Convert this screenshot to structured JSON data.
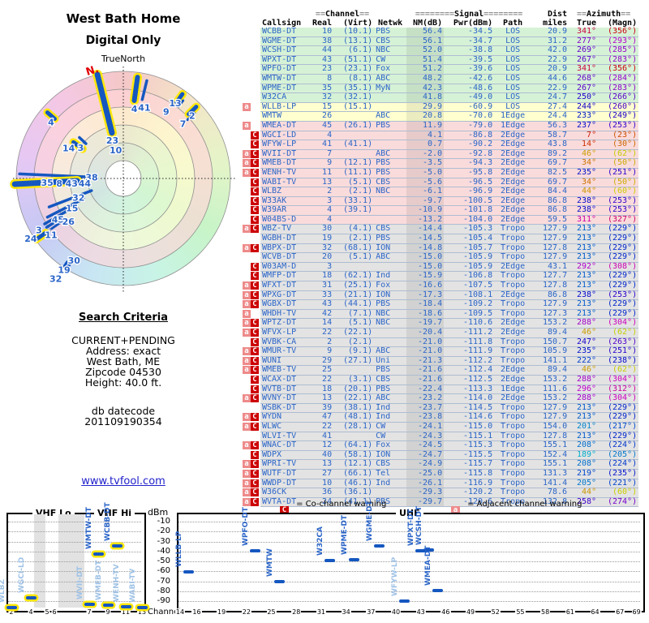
{
  "titles": {
    "main": "West Bath Home",
    "sub": "Digital Only"
  },
  "radar": {
    "axis_label": "TrueNorth",
    "magnetic_north": "N.",
    "bars": [
      {
        "az": 8,
        "r0": 126,
        "r1": 97,
        "w": 6,
        "y": 1
      },
      {
        "az": 13.5,
        "r0": 124,
        "r1": 100,
        "w": 3.5,
        "y": 0
      },
      {
        "az": 35,
        "r0": 127,
        "r1": 114,
        "w": 5,
        "y": 1
      },
      {
        "az": 37.5,
        "r0": 121,
        "r1": 112,
        "w": 3,
        "y": 0
      },
      {
        "az": 45.5,
        "r0": 126,
        "r1": 113,
        "w": 5,
        "y": 1
      },
      {
        "az": 47.5,
        "r0": 119,
        "r1": 107,
        "w": 3,
        "y": 0
      },
      {
        "az": 346,
        "r0": 132,
        "r1": 58,
        "w": 7,
        "y": 1
      },
      {
        "az": 311,
        "r0": 124,
        "r1": 112,
        "w": 5,
        "y": 1
      },
      {
        "az": 306,
        "r0": 76,
        "r1": 62,
        "w": 5,
        "y": 1
      },
      {
        "az": 313,
        "r0": 74,
        "r1": 63,
        "w": 3.5,
        "y": 0
      },
      {
        "az": 272.5,
        "r0": 128,
        "r1": 44,
        "w": 3.5,
        "y": 0
      },
      {
        "az": 267,
        "r0": 134,
        "r1": 57,
        "w": 7,
        "y": 1
      },
      {
        "az": 249,
        "r0": 98,
        "r1": 42,
        "w": 3.5,
        "y": 0
      },
      {
        "az": 243,
        "r0": 105,
        "r1": 55,
        "w": 3.5,
        "y": 0
      },
      {
        "az": 240,
        "r0": 112,
        "r1": 77,
        "w": 3.5,
        "y": 0
      },
      {
        "az": 235,
        "r0": 108,
        "r1": 88,
        "w": 3,
        "y": 0
      },
      {
        "az": 235,
        "r0": 131,
        "r1": 117,
        "w": 5,
        "y": 1
      },
      {
        "az": 237.5,
        "r0": 112,
        "r1": 98,
        "w": 3.5,
        "y": 0
      },
      {
        "az": 212,
        "r0": 131,
        "r1": 122,
        "w": 3.5,
        "y": 0
      },
      {
        "az": 214,
        "r0": 130,
        "r1": 124,
        "w": 3,
        "y": 0
      }
    ],
    "labels": [
      {
        "t": "4",
        "az": 9,
        "r": 87
      },
      {
        "t": "41",
        "az": 16.5,
        "r": 91
      },
      {
        "t": "13",
        "az": 34.5,
        "r": 113
      },
      {
        "t": "9",
        "az": 32.6,
        "r": 98
      },
      {
        "t": "2",
        "az": 47.5,
        "r": 115
      },
      {
        "t": "7",
        "az": 47.4,
        "r": 100
      },
      {
        "t": "23",
        "az": 344,
        "r": 49
      },
      {
        "t": "10",
        "az": 345,
        "r": 36
      },
      {
        "t": "4",
        "az": 308,
        "r": 113
      },
      {
        "t": "14",
        "az": 299,
        "r": 77
      },
      {
        "t": "3",
        "az": 306,
        "r": 65
      },
      {
        "t": "38",
        "az": 272.5,
        "r": 39
      },
      {
        "t": "35",
        "az": 267,
        "r": 94
      },
      {
        "t": "8",
        "az": 265.7,
        "r": 79
      },
      {
        "t": "43",
        "az": 264.6,
        "r": 64
      },
      {
        "t": "44",
        "az": 263,
        "r": 48
      },
      {
        "t": "32",
        "az": 247,
        "r": 60
      },
      {
        "t": "15",
        "az": 240,
        "r": 73
      },
      {
        "t": "45",
        "az": 238,
        "r": 95
      },
      {
        "t": "26",
        "az": 232,
        "r": 86
      },
      {
        "t": "24",
        "az": 237,
        "r": 136
      },
      {
        "t": "3",
        "az": 238.5,
        "r": 122
      },
      {
        "t": "11",
        "az": 232,
        "r": 113
      },
      {
        "t": "30",
        "az": 211,
        "r": 118
      },
      {
        "t": "19",
        "az": 213,
        "r": 134
      },
      {
        "t": "32",
        "az": 214,
        "r": 149
      }
    ]
  },
  "criteria": {
    "title": "Search Criteria",
    "lines": [
      "CURRENT+PENDING",
      "Address: exact",
      "West Bath, ME",
      "Zipcode 04530",
      "Height: 40.0 ft."
    ],
    "db_lines": [
      "db datecode",
      "201109190354"
    ],
    "link": "www.tvfool.com"
  },
  "table": {
    "header": {
      "channel": {
        "left": "==",
        "label": "Channel",
        "right": "=="
      },
      "signal": {
        "left": "========",
        "label": "Signal",
        "right": "========"
      },
      "dist": "Dist",
      "azimuth": {
        "left": "==",
        "label": "Azimuth",
        "right": "=="
      },
      "cols": [
        "Callsign",
        "Real",
        "(Virt)",
        "Netwk",
        "NM(dB)",
        "Pwr(dBm)",
        "Path",
        "miles",
        "True",
        "(Magn)"
      ]
    },
    "rows": [
      [
        "WCBB-DT",
        "10",
        "(10.1)",
        "PBS",
        "56.4",
        "-34.5",
        "LOS",
        "20.9",
        341,
        356,
        "",
        "g"
      ],
      [
        "WGME-DT",
        "38",
        "(13.1)",
        "CBS",
        "56.1",
        "-34.7",
        "LOS",
        "31.2",
        277,
        293,
        "",
        "g"
      ],
      [
        "WCSH-DT",
        "44",
        "(6.1)",
        "NBC",
        "52.0",
        "-38.8",
        "LOS",
        "42.0",
        269,
        285,
        "",
        "g"
      ],
      [
        "WPXT-DT",
        "43",
        "(51.1)",
        "CW",
        "51.4",
        "-39.5",
        "LOS",
        "22.9",
        267,
        283,
        "",
        "g"
      ],
      [
        "WPFO-DT",
        "23",
        "(23.1)",
        "Fox",
        "51.2",
        "-39.6",
        "LOS",
        "20.9",
        341,
        356,
        "",
        "g"
      ],
      [
        "WMTW-DT",
        "8",
        "(8.1)",
        "ABC",
        "48.2",
        "-42.6",
        "LOS",
        "44.6",
        268,
        284,
        "",
        "g"
      ],
      [
        "WPME-DT",
        "35",
        "(35.1)",
        "MyN",
        "42.3",
        "-48.6",
        "LOS",
        "22.9",
        267,
        283,
        "",
        "g"
      ],
      [
        "W32CA",
        "32",
        "(32.1)",
        "",
        "41.8",
        "-49.0",
        "LOS",
        "24.7",
        250,
        266,
        "",
        "g"
      ],
      [
        "WLLB-LP",
        "15",
        "(15.1)",
        "",
        "29.9",
        "-60.9",
        "LOS",
        "27.4",
        244,
        260,
        "a",
        "y"
      ],
      [
        "WMTW",
        "26",
        "",
        "ABC",
        "20.8",
        "-70.0",
        "1Edge",
        "24.4",
        233,
        249,
        "",
        "y"
      ],
      [
        "WMEA-DT",
        "45",
        "(26.1)",
        "PBS",
        "11.9",
        "-79.0",
        "1Edge",
        "56.3",
        237,
        253,
        "a",
        "p"
      ],
      [
        "WGCI-LD",
        "4",
        "",
        "",
        "4.1",
        "-86.8",
        "2Edge",
        "58.7",
        7,
        23,
        "C",
        "p"
      ],
      [
        "WFYW-LP",
        "41",
        "(41.1)",
        "",
        "0.7",
        "-90.2",
        "2Edge",
        "43.8",
        14,
        30,
        "C",
        "p"
      ],
      [
        "WVII-DT",
        "7",
        "",
        "ABC",
        "-2.0",
        "-92.8",
        "2Edge",
        "89.2",
        46,
        62,
        "aC",
        "p"
      ],
      [
        "WMEB-DT",
        "9",
        "(12.1)",
        "PBS",
        "-3.5",
        "-94.3",
        "2Edge",
        "69.7",
        34,
        50,
        "aC",
        "p"
      ],
      [
        "WENH-TV",
        "11",
        "(11.1)",
        "PBS",
        "-5.0",
        "-95.8",
        "2Edge",
        "82.5",
        235,
        251,
        "aC",
        "p"
      ],
      [
        "WABI-TV",
        "13",
        "(5.1)",
        "CBS",
        "-5.6",
        "-96.5",
        "2Edge",
        "69.7",
        34,
        50,
        "C",
        "p"
      ],
      [
        "WLBZ",
        "2",
        "(2.1)",
        "NBC",
        "-6.1",
        "-96.9",
        "2Edge",
        "84.4",
        44,
        60,
        "C",
        "p"
      ],
      [
        "W33AK",
        "3",
        "(33.1)",
        "",
        "-9.7",
        "-100.5",
        "2Edge",
        "86.8",
        238,
        253,
        "C",
        "p"
      ],
      [
        "W39AR",
        "4",
        "(39.1)",
        "",
        "-10.9",
        "-101.8",
        "2Edge",
        "86.8",
        238,
        253,
        "C",
        "p"
      ],
      [
        "W04BS-D",
        "4",
        "",
        "",
        "-13.2",
        "-104.0",
        "2Edge",
        "59.5",
        311,
        327,
        "C",
        "p"
      ],
      [
        "WBZ-TV",
        "30",
        "(4.1)",
        "CBS",
        "-14.4",
        "-105.3",
        "Tropo",
        "127.9",
        213,
        229,
        "aC",
        "e"
      ],
      [
        "WGBH-DT",
        "19",
        "(2.1)",
        "PBS",
        "-14.5",
        "-105.4",
        "Tropo",
        "127.9",
        213,
        229,
        "",
        "e"
      ],
      [
        "WBPX-DT",
        "32",
        "(68.1)",
        "ION",
        "-14.8",
        "-105.7",
        "Tropo",
        "127.8",
        213,
        229,
        "aC",
        "e"
      ],
      [
        "WCVB-DT",
        "20",
        "(5.1)",
        "ABC",
        "-15.0",
        "-105.9",
        "Tropo",
        "127.9",
        213,
        229,
        "",
        "e"
      ],
      [
        "W03AM-D",
        "3",
        "",
        "",
        "-15.0",
        "-105.9",
        "2Edge",
        "43.1",
        292,
        308,
        "C",
        "e"
      ],
      [
        "WMFP-DT",
        "18",
        "(62.1)",
        "Ind",
        "-15.9",
        "-106.8",
        "Tropo",
        "127.7",
        213,
        229,
        "C",
        "e"
      ],
      [
        "WFXT-DT",
        "31",
        "(25.1)",
        "Fox",
        "-16.6",
        "-107.5",
        "Tropo",
        "127.8",
        213,
        229,
        "aC",
        "e"
      ],
      [
        "WPXG-DT",
        "33",
        "(21.1)",
        "ION",
        "-17.3",
        "-108.1",
        "2Edge",
        "86.8",
        238,
        253,
        "aC",
        "e"
      ],
      [
        "WGBX-DT",
        "43",
        "(44.1)",
        "PBS",
        "-18.4",
        "-109.2",
        "Tropo",
        "127.9",
        213,
        229,
        "aC",
        "e"
      ],
      [
        "WHDH-TV",
        "42",
        "(7.1)",
        "NBC",
        "-18.6",
        "-109.5",
        "Tropo",
        "127.3",
        213,
        229,
        "a",
        "e"
      ],
      [
        "WPTZ-DT",
        "14",
        "(5.1)",
        "NBC",
        "-19.7",
        "-110.6",
        "2Edge",
        "153.2",
        288,
        304,
        "aC",
        "e"
      ],
      [
        "WFVX-LP",
        "22",
        "(22.1)",
        "",
        "-20.4",
        "-111.2",
        "2Edge",
        "89.4",
        46,
        62,
        "aC",
        "e"
      ],
      [
        "WVBK-CA",
        "2",
        "(2.1)",
        "",
        "-21.0",
        "-111.8",
        "Tropo",
        "150.7",
        247,
        263,
        "C",
        "e"
      ],
      [
        "WMUR-TV",
        "9",
        "(9.1)",
        "ABC",
        "-21.0",
        "-111.9",
        "Tropo",
        "105.9",
        235,
        251,
        "aC",
        "e"
      ],
      [
        "WUNI",
        "29",
        "(27.1)",
        "Uni",
        "-21.3",
        "-112.2",
        "Tropo",
        "141.1",
        222,
        238,
        "aC",
        "e"
      ],
      [
        "WMEB-TV",
        "25",
        "",
        "PBS",
        "-21.6",
        "-112.4",
        "2Edge",
        "89.4",
        46,
        62,
        "aC",
        "e"
      ],
      [
        "WCAX-DT",
        "22",
        "(3.1)",
        "CBS",
        "-21.6",
        "-112.5",
        "2Edge",
        "153.2",
        288,
        304,
        "C",
        "e"
      ],
      [
        "WVTB-DT",
        "18",
        "(20.1)",
        "PBS",
        "-22.4",
        "-113.3",
        "1Edge",
        "111.6",
        296,
        312,
        "C",
        "e"
      ],
      [
        "WVNY-DT",
        "13",
        "(22.1)",
        "ABC",
        "-23.2",
        "-114.0",
        "2Edge",
        "153.2",
        288,
        304,
        "aC",
        "e"
      ],
      [
        "WSBK-DT",
        "39",
        "(38.1)",
        "Ind",
        "-23.7",
        "-114.5",
        "Tropo",
        "127.9",
        213,
        229,
        "",
        "e"
      ],
      [
        "WYDN",
        "47",
        "(48.1)",
        "Ind",
        "-23.8",
        "-114.6",
        "Tropo",
        "127.9",
        213,
        229,
        "aC",
        "e"
      ],
      [
        "WLWC",
        "22",
        "(28.1)",
        "CW",
        "-24.1",
        "-115.0",
        "Tropo",
        "154.0",
        201,
        217,
        "aC",
        "e"
      ],
      [
        "WLVI-TV",
        "41",
        "",
        "CW",
        "-24.3",
        "-115.1",
        "Tropo",
        "127.8",
        213,
        229,
        "",
        "e"
      ],
      [
        "WNAC-DT",
        "12",
        "(64.1)",
        "Fox",
        "-24.5",
        "-115.3",
        "Tropo",
        "155.1",
        208,
        224,
        "aC",
        "e"
      ],
      [
        "WDPX",
        "40",
        "(58.1)",
        "ION",
        "-24.7",
        "-115.5",
        "Tropo",
        "152.4",
        189,
        205,
        "C",
        "e"
      ],
      [
        "WPRI-TV",
        "13",
        "(12.1)",
        "CBS",
        "-24.9",
        "-115.7",
        "Tropo",
        "155.1",
        208,
        224,
        "aC",
        "e"
      ],
      [
        "WUTF-DT",
        "27",
        "(66.1)",
        "Tel",
        "-25.0",
        "-115.8",
        "Tropo",
        "131.3",
        219,
        235,
        "aC",
        "e"
      ],
      [
        "WWDP-DT",
        "10",
        "(46.1)",
        "Ind",
        "-26.1",
        "-116.9",
        "Tropo",
        "141.4",
        205,
        221,
        "aC",
        "e"
      ],
      [
        "W36CK",
        "36",
        "(36.1)",
        "",
        "-29.3",
        "-120.2",
        "Tropo",
        "78.6",
        44,
        60,
        "aC",
        "e"
      ],
      [
        "WVTA-DT",
        "24",
        "(41.1)",
        "PBS",
        "-29.7",
        "-120.6",
        "Tropo",
        "132.8",
        258,
        274,
        "aC",
        "e"
      ]
    ]
  },
  "chart_data": {
    "type": "scatter",
    "ylabel": "dBm",
    "xlabel": "Channel",
    "y_ticks": [
      -10,
      -20,
      -30,
      -40,
      -50,
      -60,
      -70,
      -80,
      -90
    ],
    "legend": [
      {
        "sym": "C",
        "text": "= Co-channel warning"
      },
      {
        "sym": "a",
        "text": "= Adjacent channel warning"
      }
    ],
    "vhf": {
      "titles": [
        "VHF Lo",
        "VHF Hi"
      ],
      "ticks": [
        [
          2,
          14
        ],
        [
          4,
          38
        ],
        [
          5,
          58
        ],
        [
          6,
          67
        ],
        [
          7,
          110
        ],
        [
          9,
          133
        ],
        [
          11,
          155
        ],
        [
          13,
          175
        ]
      ],
      "bands": [
        [
          42,
          56
        ],
        [
          72,
          104
        ]
      ],
      "stations": [
        {
          "name": "WLBZ",
          "ch": 2,
          "x": 14,
          "dbm": -96.9,
          "yellow": 1,
          "fade": 1
        },
        {
          "name": "WGCI-LD",
          "ch": 4,
          "x": 38,
          "dbm": -86.8,
          "yellow": 1,
          "fade": 1
        },
        {
          "name": "WVII-DT",
          "ch": 7,
          "x": 110,
          "dbm": -92.8,
          "yellow": 1,
          "fade": 1
        },
        {
          "name": "WMTW-DT",
          "ch": 8,
          "x": 121,
          "dbm": -42.6,
          "yellow": 1,
          "fade": 0
        },
        {
          "name": "WMEB-DT",
          "ch": 9,
          "x": 133,
          "dbm": -94.3,
          "yellow": 1,
          "fade": 1
        },
        {
          "name": "WCBB-DT",
          "ch": 10,
          "x": 144,
          "dbm": -34.5,
          "yellow": 1,
          "fade": 0
        },
        {
          "name": "WENH-TV",
          "ch": 11,
          "x": 155,
          "dbm": -95.8,
          "yellow": 1,
          "fade": 1
        },
        {
          "name": "WABI-TV",
          "ch": 13,
          "x": 175,
          "dbm": -96.5,
          "yellow": 1,
          "fade": 1
        }
      ]
    },
    "uhf": {
      "title": "UHF",
      "ticks": [
        14,
        16,
        19,
        22,
        25,
        28,
        31,
        34,
        37,
        40,
        43,
        46,
        49,
        52,
        55,
        58,
        61,
        64,
        67,
        69
      ],
      "stations": [
        {
          "name": "WLLB-LP",
          "ch": 15,
          "dbm": -60.9,
          "yellow": 0,
          "fade": 0
        },
        {
          "name": "WPFO-DT",
          "ch": 23,
          "dbm": -39.6,
          "yellow": 0,
          "fade": 0
        },
        {
          "name": "WMTW",
          "ch": 26,
          "dbm": -70.0,
          "yellow": 0,
          "fade": 0
        },
        {
          "name": "W32CA",
          "ch": 32,
          "dbm": -49.0,
          "yellow": 0,
          "fade": 0
        },
        {
          "name": "WPME-DT",
          "ch": 35,
          "dbm": -48.6,
          "yellow": 0,
          "fade": 0
        },
        {
          "name": "WGME-DT",
          "ch": 38,
          "dbm": -34.7,
          "yellow": 0,
          "fade": 0
        },
        {
          "name": "WFYW-LP",
          "ch": 41,
          "dbm": -90.2,
          "yellow": 0,
          "fade": 1
        },
        {
          "name": "WPXT-DT",
          "ch": 43,
          "dbm": -39.5,
          "yellow": 0,
          "fade": 0
        },
        {
          "name": "WCSH-DT",
          "ch": 44,
          "dbm": -38.8,
          "yellow": 0,
          "fade": 0
        },
        {
          "name": "WMEA-DT",
          "ch": 45,
          "dbm": -79.0,
          "yellow": 0,
          "fade": 0
        }
      ]
    }
  }
}
